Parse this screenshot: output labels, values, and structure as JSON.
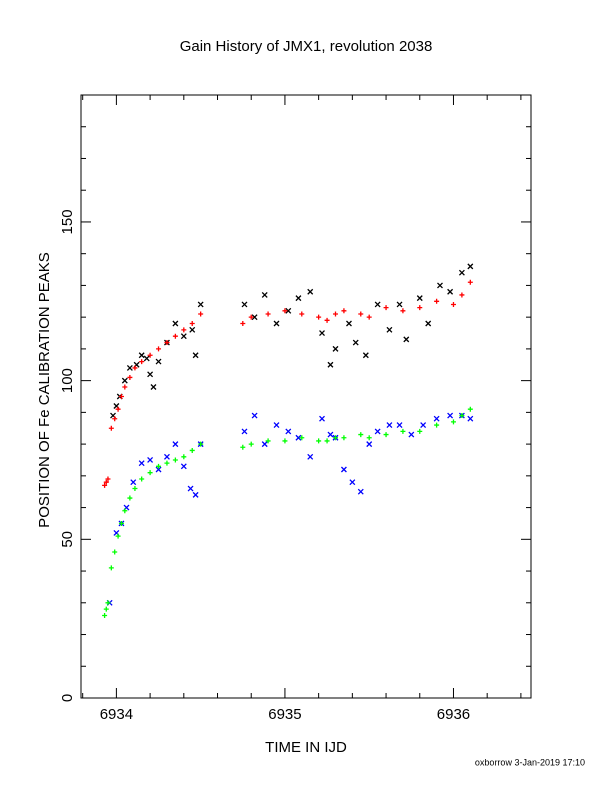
{
  "chart_data": {
    "type": "scatter",
    "title": "Gain History of JMX1, revolution 2038",
    "x_label": "TIME IN IJD",
    "y_label": "POSITION OF Fe CALIBRATION PEAKS",
    "footer": "oxborrow  3-Jan-2019 17:10",
    "xlim": [
      6933.79,
      6936.46
    ],
    "ylim": [
      0,
      190
    ],
    "xticks": [
      6934,
      6935,
      6936
    ],
    "yticks": [
      0,
      50,
      100,
      150
    ],
    "xminor": [
      6933.8,
      6934.2,
      6934.4,
      6934.6,
      6934.8,
      6935.2,
      6935.4,
      6935.6,
      6935.8,
      6936.2,
      6936.4
    ],
    "yminor": [
      10,
      20,
      30,
      40,
      60,
      70,
      80,
      90,
      110,
      120,
      130,
      140,
      160,
      170,
      180
    ],
    "series": [
      {
        "color": "#000000",
        "marker": "x",
        "x": [
          6933.98,
          6934.0,
          6934.02,
          6934.05,
          6934.08,
          6934.12,
          6934.15,
          6934.18,
          6934.2,
          6934.22,
          6934.25,
          6934.3,
          6934.35,
          6934.4,
          6934.45,
          6934.47,
          6934.5,
          6934.76,
          6934.82,
          6934.88,
          6934.95,
          6935.02,
          6935.08,
          6935.15,
          6935.22,
          6935.27,
          6935.3,
          6935.38,
          6935.42,
          6935.48,
          6935.55,
          6935.62,
          6935.68,
          6935.72,
          6935.8,
          6935.85,
          6935.92,
          6935.98,
          6936.05,
          6936.1
        ],
        "values": [
          89,
          92,
          95,
          100,
          104,
          105,
          108,
          107,
          102,
          98,
          106,
          112,
          118,
          114,
          116,
          108,
          124,
          124,
          120,
          127,
          118,
          122,
          126,
          128,
          115,
          105,
          110,
          118,
          112,
          108,
          124,
          116,
          124,
          113,
          126,
          118,
          130,
          128,
          134,
          136
        ]
      },
      {
        "color": "#ff0000",
        "marker": "+",
        "x": [
          6933.93,
          6933.94,
          6933.95,
          6933.97,
          6933.99,
          6934.01,
          6934.03,
          6934.05,
          6934.08,
          6934.11,
          6934.15,
          6934.2,
          6934.25,
          6934.3,
          6934.35,
          6934.4,
          6934.45,
          6934.5,
          6934.75,
          6934.8,
          6934.9,
          6935.0,
          6935.1,
          6935.2,
          6935.25,
          6935.3,
          6935.35,
          6935.45,
          6935.5,
          6935.6,
          6935.7,
          6935.8,
          6935.9,
          6936.0,
          6936.05,
          6936.1
        ],
        "values": [
          67,
          68,
          69,
          85,
          88,
          91,
          95,
          98,
          101,
          104,
          106,
          108,
          110,
          112,
          114,
          116,
          118,
          121,
          118,
          120,
          121,
          122,
          121,
          120,
          119,
          121,
          122,
          121,
          120,
          123,
          122,
          123,
          125,
          124,
          127,
          131
        ]
      },
      {
        "color": "#0000ff",
        "marker": "x",
        "x": [
          6933.96,
          6934.0,
          6934.03,
          6934.06,
          6934.1,
          6934.15,
          6934.2,
          6934.25,
          6934.3,
          6934.35,
          6934.4,
          6934.44,
          6934.47,
          6934.5,
          6934.76,
          6934.82,
          6934.88,
          6934.95,
          6935.02,
          6935.08,
          6935.15,
          6935.22,
          6935.27,
          6935.3,
          6935.35,
          6935.4,
          6935.45,
          6935.5,
          6935.55,
          6935.62,
          6935.68,
          6935.75,
          6935.82,
          6935.9,
          6935.98,
          6936.05,
          6936.1
        ],
        "values": [
          30,
          52,
          55,
          60,
          68,
          74,
          75,
          72,
          76,
          80,
          73,
          66,
          64,
          80,
          84,
          89,
          80,
          86,
          84,
          82,
          76,
          88,
          83,
          82,
          72,
          68,
          65,
          80,
          84,
          86,
          86,
          83,
          86,
          88,
          89,
          89,
          88
        ]
      },
      {
        "color": "#00ff00",
        "marker": "+",
        "x": [
          6933.93,
          6933.94,
          6933.95,
          6933.97,
          6933.99,
          6934.01,
          6934.03,
          6934.05,
          6934.08,
          6934.11,
          6934.15,
          6934.2,
          6934.25,
          6934.3,
          6934.35,
          6934.4,
          6934.45,
          6934.5,
          6934.75,
          6934.8,
          6934.9,
          6935.0,
          6935.1,
          6935.2,
          6935.25,
          6935.3,
          6935.35,
          6935.45,
          6935.5,
          6935.6,
          6935.7,
          6935.8,
          6935.9,
          6936.0,
          6936.05,
          6936.1
        ],
        "values": [
          26,
          28,
          30,
          41,
          46,
          51,
          55,
          59,
          63,
          66,
          69,
          71,
          73,
          74,
          75,
          76,
          78,
          80,
          79,
          80,
          81,
          81,
          82,
          81,
          81,
          82,
          82,
          83,
          82,
          83,
          84,
          84,
          86,
          87,
          89,
          91
        ]
      }
    ]
  }
}
